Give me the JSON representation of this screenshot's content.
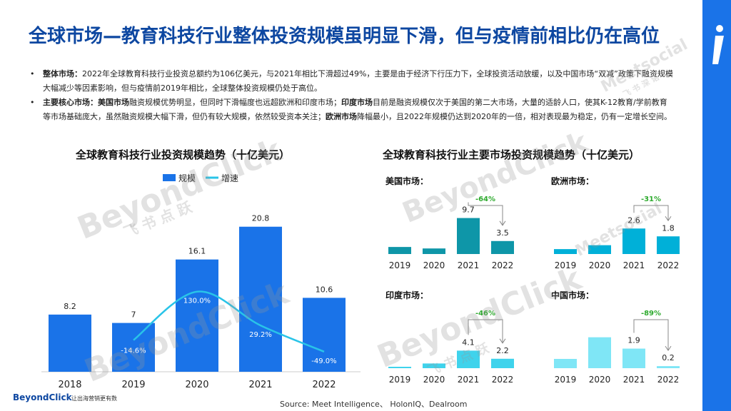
{
  "page": {
    "title": "全球市场—教育科技行业整体投资规模虽明显下滑，但与疫情前相比仍在高位",
    "bullets": [
      {
        "label": "整体市场：",
        "segments": [
          {
            "text": "2022年全球教育科技行业投资总额约为106亿美元，与2021年相比下滑超过49%，主要是由于经济下行压力下，全球投资活动放缓，以及中国市场“双减”政策下融资规模大幅减少等因素影响，但与疫情前2019年相比，全球整体投资规模仍处于高位。",
            "bold": false
          }
        ]
      },
      {
        "label": "主要核心市场：",
        "segments": [
          {
            "text": "美国市场",
            "bold": true
          },
          {
            "text": "融资规模优势明显，但同时下滑幅度也远超欧洲和印度市场；",
            "bold": false
          },
          {
            "text": "印度市场",
            "bold": true
          },
          {
            "text": "目前是融资规模仅次于美国的第二大市场，大量的适龄人口，使其K-12教育/学前教育等市场基础庞大，虽然融资规模大幅下滑，但仍有较大规模，依然较受资本关注；",
            "bold": false
          },
          {
            "text": "欧洲市场",
            "bold": true
          },
          {
            "text": "降幅最小，且2022年规模仍达到2020年的一倍，相对表现最为稳定，仍有一定增长空间。",
            "bold": false
          }
        ]
      }
    ],
    "source": "Source:    Meet Intelligence、 HolonIQ、Dealroom",
    "footer_logo": "BeyondClick",
    "footer_tagline": "让出海营销更有数",
    "watermarks": [
      "BeyondClick",
      "飞 书 点 跃",
      "Meetsocial",
      "飞 书 深 诺"
    ]
  },
  "colors": {
    "accent": "#1a73e8",
    "title": "#0d47a1",
    "bar_main": "#1a73e8",
    "line_main": "#29c4e8",
    "us_bar": "#0e96a8",
    "eu_bar": "#00b0d8",
    "in_bar": "#3fd3ec",
    "cn_bar": "#7fe6f6",
    "change_text": "#2eaa2e"
  },
  "chart_data": [
    {
      "type": "bar",
      "title": "全球教育科技行业投资规模趋势（十亿美元）",
      "categories": [
        "2018",
        "2019",
        "2020",
        "2021",
        "2022"
      ],
      "series": [
        {
          "name": "规模",
          "type": "bar",
          "values": [
            8.2,
            7.0,
            16.1,
            20.8,
            10.6
          ]
        },
        {
          "name": "增速",
          "type": "line",
          "values": [
            null,
            -14.6,
            130.0,
            29.2,
            -49.0
          ],
          "labels": [
            "",
            "-14.6%",
            "130.0%",
            "29.2%",
            "-49.0%"
          ]
        }
      ],
      "legend": "top"
    },
    {
      "type": "bar",
      "title": "全球教育科技行业主要市场投资规模趋势（十亿美元）",
      "panels": [
        {
          "name": "美国市场：",
          "categories": [
            "2019",
            "2020",
            "2021",
            "2022"
          ],
          "values": [
            1.9,
            1.5,
            9.7,
            3.5
          ],
          "labels": [
            "",
            "",
            "9.7",
            "3.5"
          ],
          "change": "-64%",
          "color_key": "us_bar"
        },
        {
          "name": "欧洲市场：",
          "categories": [
            "2019",
            "2020",
            "2021",
            "2022"
          ],
          "values": [
            0.5,
            0.9,
            2.6,
            1.8
          ],
          "labels": [
            "",
            "",
            "2.6",
            "1.8"
          ],
          "change": "-31%",
          "color_key": "eu_bar"
        },
        {
          "name": "印度市场：",
          "categories": [
            "2019",
            "2020",
            "2021",
            "2022"
          ],
          "values": [
            0.3,
            1.1,
            4.1,
            2.2
          ],
          "labels": [
            "",
            "",
            "4.1",
            "2.2"
          ],
          "change": "-46%",
          "color_key": "in_bar"
        },
        {
          "name": "中国市场：",
          "categories": [
            "2019",
            "2020",
            "2021",
            "2022"
          ],
          "values": [
            0.9,
            3.0,
            1.9,
            0.2
          ],
          "labels": [
            "",
            "",
            "1.9",
            "0.2"
          ],
          "change": "-89%",
          "color_key": "cn_bar"
        }
      ]
    }
  ]
}
